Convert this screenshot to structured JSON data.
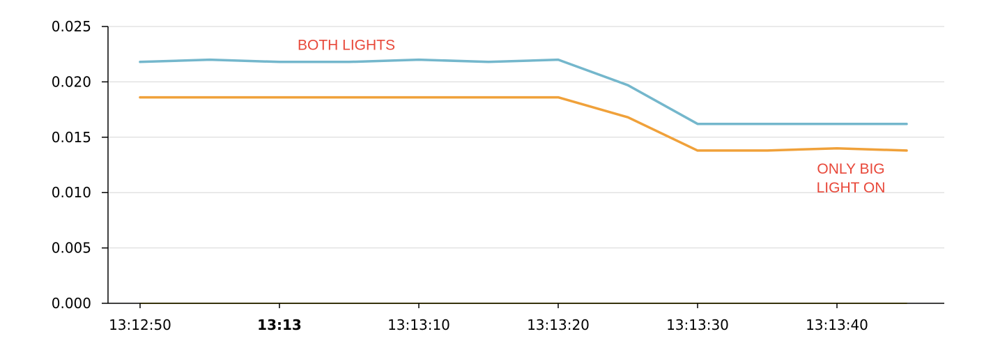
{
  "chart_data": {
    "type": "line",
    "y_ticks": [
      "0.000",
      "0.005",
      "0.010",
      "0.015",
      "0.020",
      "0.025"
    ],
    "ylim": [
      0,
      0.025
    ],
    "x_ticks": [
      {
        "label": "13:12:50",
        "t": 0,
        "bold": false
      },
      {
        "label": "13:13",
        "t": 10,
        "bold": true
      },
      {
        "label": "13:13:10",
        "t": 20,
        "bold": false
      },
      {
        "label": "13:13:20",
        "t": 30,
        "bold": false
      },
      {
        "label": "13:13:30",
        "t": 40,
        "bold": false
      },
      {
        "label": "13:13:40",
        "t": 50,
        "bold": false
      }
    ],
    "xlim": [
      -2.3,
      57.7
    ],
    "grid": true,
    "series": [
      {
        "color": "#74b7cc",
        "x": [
          0,
          5,
          10,
          15,
          20,
          25,
          30,
          35,
          40,
          45,
          50,
          55
        ],
        "y": [
          0.0218,
          0.022,
          0.0218,
          0.0218,
          0.022,
          0.0218,
          0.022,
          0.0197,
          0.0162,
          0.0162,
          0.0162,
          0.0162
        ]
      },
      {
        "color": "#f0a13a",
        "x": [
          0,
          5,
          10,
          15,
          20,
          25,
          30,
          35,
          40,
          45,
          50,
          55
        ],
        "y": [
          0.0186,
          0.0186,
          0.0186,
          0.0186,
          0.0186,
          0.0186,
          0.0186,
          0.0168,
          0.0138,
          0.0138,
          0.014,
          0.0138
        ]
      },
      {
        "color": "#d9c832",
        "x": [
          0,
          55
        ],
        "y": [
          0.0,
          0.0
        ]
      }
    ],
    "annotations": [
      {
        "lines": [
          "BOTH LIGHTS"
        ],
        "x": 14.8,
        "y": 0.0229,
        "color": "#e8483a"
      },
      {
        "lines": [
          "ONLY BIG",
          "LIGHT ON"
        ],
        "x": 51.0,
        "y": 0.0117,
        "color": "#e8483a"
      }
    ]
  }
}
